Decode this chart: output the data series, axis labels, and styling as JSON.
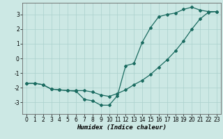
{
  "xlabel": "Humidex (Indice chaleur)",
  "bg_color": "#cce8e4",
  "grid_color": "#aad0cc",
  "line_color": "#1a6b60",
  "line1_x": [
    0,
    1,
    2,
    3,
    4,
    5,
    6,
    7,
    8,
    9,
    10,
    11,
    12,
    13,
    14,
    15,
    16,
    17,
    18,
    19,
    20,
    21,
    22,
    23
  ],
  "line1_y": [
    -1.7,
    -1.7,
    -1.8,
    -2.1,
    -2.15,
    -2.2,
    -2.2,
    -2.2,
    -2.3,
    -2.5,
    -2.6,
    -2.4,
    -2.15,
    -1.8,
    -1.5,
    -1.1,
    -0.6,
    -0.1,
    0.5,
    1.2,
    2.0,
    2.7,
    3.15,
    3.2
  ],
  "line2_x": [
    0,
    1,
    2,
    3,
    4,
    5,
    6,
    7,
    8,
    9,
    10,
    11,
    12,
    13,
    14,
    15,
    16,
    17,
    18,
    19,
    20,
    21,
    22,
    23
  ],
  "line2_y": [
    -1.7,
    -1.7,
    -1.8,
    -2.1,
    -2.15,
    -2.2,
    -2.25,
    -2.8,
    -2.9,
    -3.2,
    -3.2,
    -2.55,
    -0.5,
    -0.35,
    1.1,
    2.1,
    2.85,
    3.0,
    3.1,
    3.35,
    3.5,
    3.3,
    3.2,
    3.2
  ],
  "ylim": [
    -3.8,
    3.8
  ],
  "xlim": [
    -0.5,
    23.5
  ],
  "yticks": [
    -3,
    -2,
    -1,
    0,
    1,
    2,
    3
  ],
  "xticks": [
    0,
    1,
    2,
    3,
    4,
    5,
    6,
    7,
    8,
    9,
    10,
    11,
    12,
    13,
    14,
    15,
    16,
    17,
    18,
    19,
    20,
    21,
    22,
    23
  ],
  "marker": "D",
  "marker_size": 2.0,
  "line_width": 0.9,
  "tick_fontsize": 5.5,
  "label_fontsize": 6.5
}
